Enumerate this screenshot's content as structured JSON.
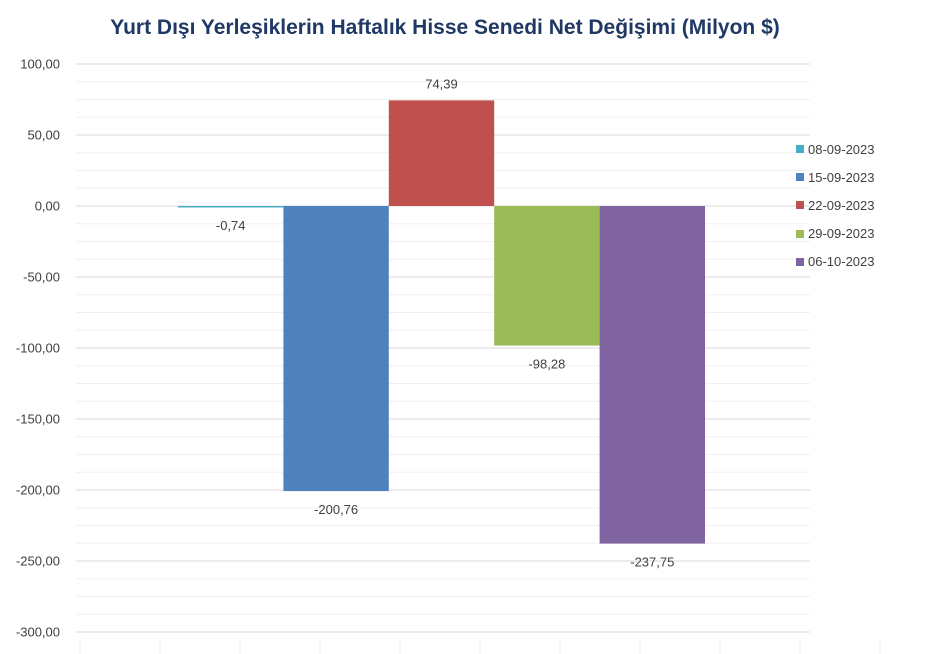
{
  "chart_data": {
    "type": "bar",
    "title": "Yurt Dışı Yerleşiklerin Haftalık Hisse Senedi Net Değişimi (Milyon $)",
    "xlabel": "",
    "ylabel": "",
    "ylim": [
      -300,
      100
    ],
    "yticks": [
      100,
      50,
      0,
      -50,
      -100,
      -150,
      -200,
      -250,
      -300
    ],
    "ytick_labels": [
      "100,00",
      "50,00",
      "0,00",
      "-50,00",
      "-100,00",
      "-150,00",
      "-200,00",
      "-250,00",
      "-300,00"
    ],
    "grid": true,
    "legend_position": "right",
    "series": [
      {
        "name": "08-09-2023",
        "value": -0.74,
        "label": "-0,74",
        "color": "#4bacc6"
      },
      {
        "name": "15-09-2023",
        "value": -200.76,
        "label": "-200,76",
        "color": "#4f81bd"
      },
      {
        "name": "22-09-2023",
        "value": 74.39,
        "label": "74,39",
        "color": "#c0504d"
      },
      {
        "name": "29-09-2023",
        "value": -98.28,
        "label": "-98,28",
        "color": "#9bbb59"
      },
      {
        "name": "06-10-2023",
        "value": -237.75,
        "label": "-237,75",
        "color": "#8064a2"
      }
    ]
  }
}
